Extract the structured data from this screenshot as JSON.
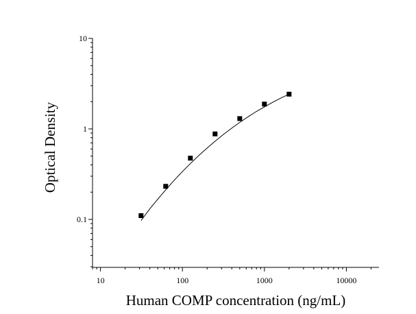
{
  "chart_data": {
    "type": "scatter",
    "title": "",
    "xlabel": "Human COMP concentration (ng/mL)",
    "ylabel": "Optical Density",
    "x_scale": "log",
    "y_scale": "log",
    "xlim": [
      8,
      25000
    ],
    "ylim": [
      0.0295,
      10
    ],
    "x_ticks": [
      10,
      100,
      1000,
      10000
    ],
    "x_tick_labels": [
      "10",
      "100",
      "1000",
      "10000"
    ],
    "y_ticks": [
      0.1,
      1,
      10
    ],
    "y_tick_labels": [
      "0.1",
      "1",
      "10"
    ],
    "grid": false,
    "legend": "none",
    "marker": "square",
    "marker_color": "#000000",
    "series": [
      {
        "x": [
          31.25,
          62.5,
          125,
          250,
          500,
          1000,
          2000
        ],
        "y": [
          0.11,
          0.232,
          0.475,
          0.88,
          1.3,
          1.88,
          2.42
        ]
      }
    ],
    "fit_curve": {
      "x": [
        31.25,
        40,
        50,
        62.5,
        80,
        100,
        125,
        160,
        200,
        250,
        320,
        400,
        500,
        640,
        800,
        1000,
        1280,
        1600,
        2000
      ],
      "y": [
        0.097,
        0.131,
        0.167,
        0.212,
        0.273,
        0.338,
        0.414,
        0.513,
        0.614,
        0.731,
        0.876,
        1.02,
        1.18,
        1.37,
        1.56,
        1.75,
        1.98,
        2.2,
        2.42
      ],
      "color": "#000000"
    }
  }
}
